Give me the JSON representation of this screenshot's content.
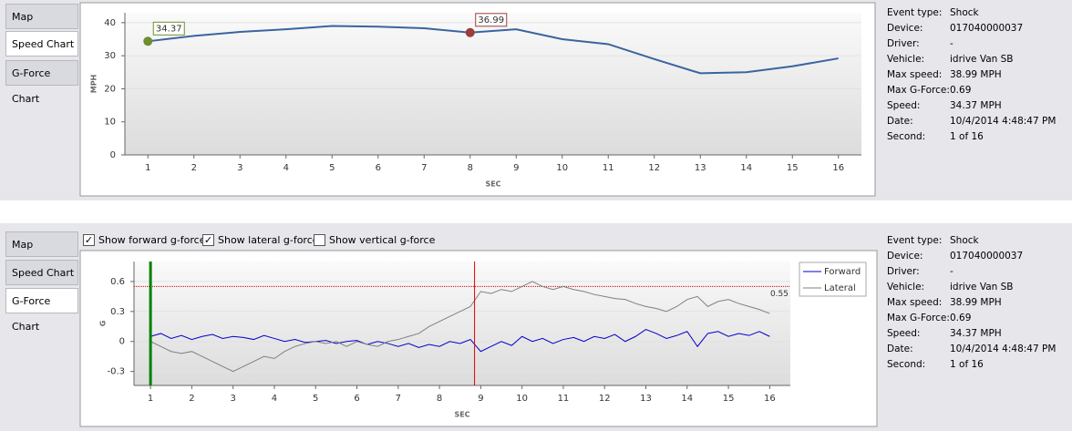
{
  "panels": [
    {
      "tabs": [
        "Map",
        "Speed Chart",
        "G-Force Chart"
      ],
      "active_tab": 1,
      "chart": {
        "type": "line",
        "y_label": "MPH",
        "x_label": "SEC",
        "x": [
          1,
          2,
          3,
          4,
          5,
          6,
          7,
          8,
          9,
          10,
          11,
          12,
          13,
          14,
          15,
          16
        ],
        "series": [
          {
            "color": "#3a64a0",
            "values": [
              34.37,
              36,
              37.2,
              38,
              39,
              38.8,
              38.3,
              36.99,
              38,
              35,
              33.5,
              29,
              24.7,
              25,
              26.8,
              29.2
            ]
          }
        ],
        "markers": [
          {
            "x": 1,
            "value": 34.37,
            "color": "#6e8f2e"
          },
          {
            "x": 8,
            "value": 36.99,
            "color": "#9e3b3b"
          }
        ],
        "xlim": [
          0.5,
          16.5
        ],
        "ylim": [
          0,
          43
        ],
        "xticks": [
          1,
          2,
          3,
          4,
          5,
          6,
          7,
          8,
          9,
          10,
          11,
          12,
          13,
          14,
          15,
          16
        ],
        "yticks": [
          0,
          10,
          20,
          30,
          40
        ],
        "grid": true
      },
      "info": [
        [
          "Event type:",
          "Shock"
        ],
        [
          "Device:",
          "017040000037"
        ],
        [
          "Driver:",
          "-"
        ],
        [
          "Vehicle:",
          "idrive Van SB"
        ],
        [
          "Max speed:",
          "38.99 MPH"
        ],
        [
          "Max G-Force:",
          "0.69"
        ],
        [
          "Speed:",
          "34.37 MPH"
        ],
        [
          "Date:",
          "10/4/2014 4:48:47 PM"
        ],
        [
          "Second:",
          "1 of 16"
        ]
      ]
    },
    {
      "tabs": [
        "Map",
        "Speed Chart",
        "G-Force Chart"
      ],
      "active_tab": 2,
      "checkboxes": [
        {
          "label": "Show forward g-force",
          "checked": true
        },
        {
          "label": "Show lateral g-force",
          "checked": true
        },
        {
          "label": "Show vertical g-force",
          "checked": false
        }
      ],
      "chart": {
        "type": "line",
        "y_label": "G",
        "x_label": "SEC",
        "x": [
          1,
          1.25,
          1.5,
          1.75,
          2,
          2.25,
          2.5,
          2.75,
          3,
          3.25,
          3.5,
          3.75,
          4,
          4.25,
          4.5,
          4.75,
          5,
          5.25,
          5.5,
          5.75,
          6,
          6.25,
          6.5,
          6.75,
          7,
          7.25,
          7.5,
          7.75,
          8,
          8.25,
          8.5,
          8.75,
          9,
          9.25,
          9.5,
          9.75,
          10,
          10.25,
          10.5,
          10.75,
          11,
          11.25,
          11.5,
          11.75,
          12,
          12.25,
          12.5,
          12.75,
          13,
          13.25,
          13.5,
          13.75,
          14,
          14.25,
          14.5,
          14.75,
          15,
          15.25,
          15.5,
          15.75,
          16
        ],
        "series": [
          {
            "name": "Forward",
            "color": "#0000cc",
            "values": [
              0.05,
              0.08,
              0.03,
              0.06,
              0.02,
              0.05,
              0.07,
              0.03,
              0.05,
              0.04,
              0.02,
              0.06,
              0.03,
              0,
              0.02,
              -0.01,
              0,
              0.01,
              -0.02,
              0,
              0.01,
              -0.03,
              0,
              -0.02,
              -0.05,
              -0.02,
              -0.06,
              -0.03,
              -0.05,
              0,
              -0.02,
              0.02,
              -0.1,
              -0.05,
              0,
              -0.04,
              0.05,
              0,
              0.03,
              -0.02,
              0.02,
              0.04,
              0,
              0.05,
              0.03,
              0.07,
              0,
              0.05,
              0.12,
              0.08,
              0.03,
              0.06,
              0.1,
              -0.05,
              0.08,
              0.1,
              0.05,
              0.08,
              0.06,
              0.1,
              0.05
            ]
          },
          {
            "name": "Lateral",
            "color": "#808080",
            "values": [
              0,
              -0.05,
              -0.1,
              -0.12,
              -0.1,
              -0.15,
              -0.2,
              -0.25,
              -0.3,
              -0.25,
              -0.2,
              -0.15,
              -0.17,
              -0.1,
              -0.05,
              -0.02,
              0,
              -0.02,
              0,
              -0.05,
              0,
              -0.03,
              -0.05,
              0,
              0.02,
              0.05,
              0.08,
              0.15,
              0.2,
              0.25,
              0.3,
              0.35,
              0.5,
              0.48,
              0.52,
              0.5,
              0.55,
              0.6,
              0.55,
              0.52,
              0.55,
              0.52,
              0.5,
              0.47,
              0.45,
              0.43,
              0.42,
              0.38,
              0.35,
              0.33,
              0.3,
              0.35,
              0.42,
              0.45,
              0.35,
              0.4,
              0.42,
              0.38,
              0.35,
              0.32,
              0.28
            ]
          }
        ],
        "threshold": 0.55,
        "threshold_color": "#cc0000",
        "cursor_x": 8.85,
        "cursor_color": "#e00000",
        "start_x": 1,
        "start_color": "#008000",
        "xlim": [
          0.6,
          16.5
        ],
        "ylim": [
          -0.44,
          0.8
        ],
        "xticks": [
          1,
          2,
          3,
          4,
          5,
          6,
          7,
          8,
          9,
          10,
          11,
          12,
          13,
          14,
          15,
          16
        ],
        "yticks": [
          -0.3,
          0,
          0.3,
          0.6
        ],
        "grid": true,
        "legend": "right"
      },
      "info": [
        [
          "Event type:",
          "Shock"
        ],
        [
          "Device:",
          "017040000037"
        ],
        [
          "Driver:",
          "-"
        ],
        [
          "Vehicle:",
          "idrive Van SB"
        ],
        [
          "Max speed:",
          "38.99 MPH"
        ],
        [
          "Max G-Force:",
          "0.69"
        ],
        [
          "Speed:",
          "34.37 MPH"
        ],
        [
          "Date:",
          "10/4/2014 4:48:47 PM"
        ],
        [
          "Second:",
          "1 of 16"
        ]
      ]
    }
  ]
}
